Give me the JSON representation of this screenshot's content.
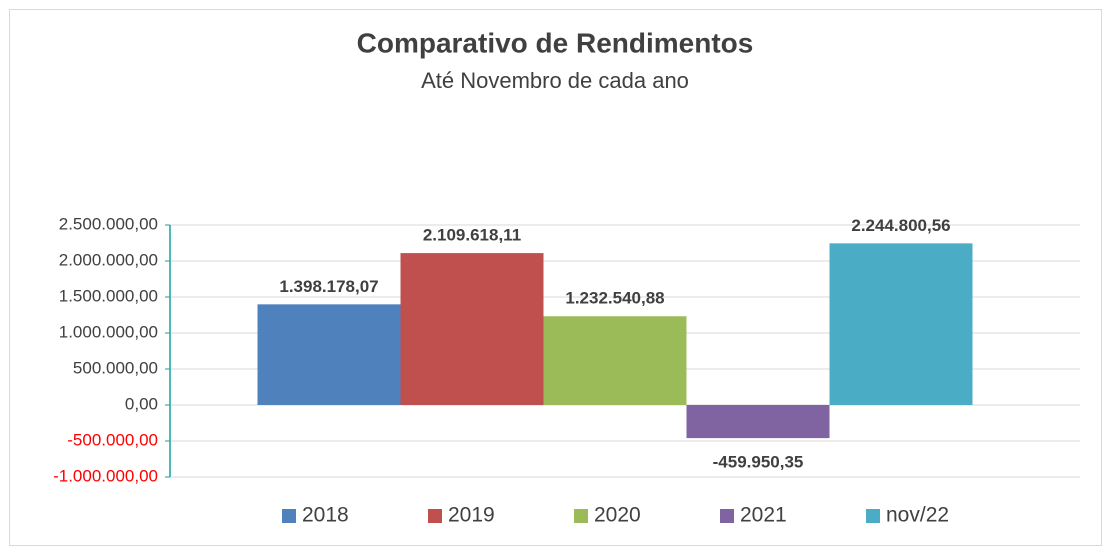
{
  "chart_data": {
    "type": "bar",
    "title": "Comparativo de Rendimentos",
    "subtitle": "Até Novembro de cada ano",
    "categories": [
      null
    ],
    "series": [
      {
        "name": "2018",
        "color": "#4f81bd",
        "values": [
          1398178.07
        ],
        "value_labels": [
          "1.398.178,07"
        ]
      },
      {
        "name": "2019",
        "color": "#c0504d",
        "values": [
          2109618.11
        ],
        "value_labels": [
          "2.109.618,11"
        ]
      },
      {
        "name": "2020",
        "color": "#9bbb59",
        "values": [
          1232540.88
        ],
        "value_labels": [
          "1.232.540,88"
        ]
      },
      {
        "name": "2021",
        "color": "#8064a2",
        "values": [
          -459950.35
        ],
        "value_labels": [
          "-459.950,35"
        ]
      },
      {
        "name": "nov/22",
        "color": "#4bacc6",
        "values": [
          2244800.56
        ],
        "value_labels": [
          "2.244.800,56"
        ]
      }
    ],
    "ylim": [
      -1000000,
      2500000
    ],
    "yticks": [
      {
        "value": -1000000,
        "label": "-1.000.000,00"
      },
      {
        "value": -500000,
        "label": "-500.000,00"
      },
      {
        "value": 0,
        "label": "0,00"
      },
      {
        "value": 500000,
        "label": "500.000,00"
      },
      {
        "value": 1000000,
        "label": "1.000.000,00"
      },
      {
        "value": 1500000,
        "label": "1.500.000,00"
      },
      {
        "value": 2000000,
        "label": "2.000.000,00"
      },
      {
        "value": 2500000,
        "label": "2.500.000,00"
      }
    ],
    "negative_tick_color": "#ff0000",
    "grid": true,
    "legend": "bottom"
  }
}
